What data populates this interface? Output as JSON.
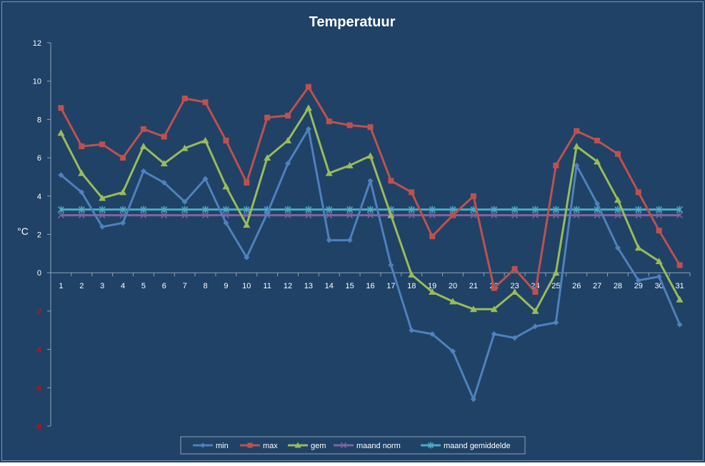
{
  "chart_data": {
    "type": "line",
    "title": "Temperatuur",
    "xlabel": "",
    "ylabel": "°C",
    "ylim": [
      -8,
      12
    ],
    "ytick_step": 2,
    "grid": false,
    "legend_position": "bottom",
    "background": "#1f4266",
    "text_color": "#ffffff",
    "negative_tick_color": "#ff0000",
    "categories": [
      "1",
      "2",
      "3",
      "4",
      "5",
      "6",
      "7",
      "8",
      "9",
      "10",
      "11",
      "12",
      "13",
      "14",
      "15",
      "16",
      "17",
      "18",
      "19",
      "20",
      "21",
      "22",
      "23",
      "24",
      "25",
      "26",
      "27",
      "28",
      "29",
      "30",
      "31"
    ],
    "series": [
      {
        "name": "min",
        "color": "#4f81bd",
        "marker": "diamond",
        "values": [
          5.1,
          4.2,
          2.4,
          2.6,
          5.3,
          4.7,
          3.7,
          4.9,
          2.6,
          0.8,
          3.1,
          5.7,
          7.5,
          1.7,
          1.7,
          4.8,
          0.4,
          -3.0,
          -3.2,
          -4.1,
          -6.6,
          -3.2,
          -3.4,
          -2.8,
          -2.6,
          5.6,
          3.6,
          1.3,
          -0.4,
          -0.2,
          -2.7
        ]
      },
      {
        "name": "max",
        "color": "#c0504d",
        "marker": "square",
        "values": [
          8.6,
          6.6,
          6.7,
          6.0,
          7.5,
          7.1,
          9.1,
          8.9,
          6.9,
          4.7,
          8.1,
          8.2,
          9.7,
          7.9,
          7.7,
          7.6,
          4.8,
          4.2,
          1.9,
          3.0,
          4.0,
          -0.8,
          0.2,
          -1.0,
          5.6,
          7.4,
          6.9,
          6.2,
          4.2,
          2.2,
          0.4
        ]
      },
      {
        "name": "gem",
        "color": "#9bbb59",
        "marker": "triangle",
        "values": [
          7.3,
          5.2,
          3.9,
          4.2,
          6.6,
          5.7,
          6.5,
          6.9,
          4.5,
          2.5,
          6.0,
          6.9,
          8.6,
          5.2,
          5.6,
          6.1,
          3.0,
          -0.1,
          -1.0,
          -1.5,
          -1.9,
          -1.9,
          -1.0,
          -2.0,
          0.0,
          6.6,
          5.8,
          3.8,
          1.3,
          0.6,
          -1.4
        ]
      },
      {
        "name": "maand norm",
        "color": "#8064a2",
        "marker": "x",
        "values": [
          3.0,
          3.0,
          3.0,
          3.0,
          3.0,
          3.0,
          3.0,
          3.0,
          3.0,
          3.0,
          3.0,
          3.0,
          3.0,
          3.0,
          3.0,
          3.0,
          3.0,
          3.0,
          3.0,
          3.0,
          3.0,
          3.0,
          3.0,
          3.0,
          3.0,
          3.0,
          3.0,
          3.0,
          3.0,
          3.0,
          3.0
        ]
      },
      {
        "name": "maand gemiddelde",
        "color": "#4bacc6",
        "marker": "star",
        "values": [
          3.3,
          3.3,
          3.3,
          3.3,
          3.3,
          3.3,
          3.3,
          3.3,
          3.3,
          3.3,
          3.3,
          3.3,
          3.3,
          3.3,
          3.3,
          3.3,
          3.3,
          3.3,
          3.3,
          3.3,
          3.3,
          3.3,
          3.3,
          3.3,
          3.3,
          3.3,
          3.3,
          3.3,
          3.3,
          3.3,
          3.3
        ]
      }
    ]
  }
}
